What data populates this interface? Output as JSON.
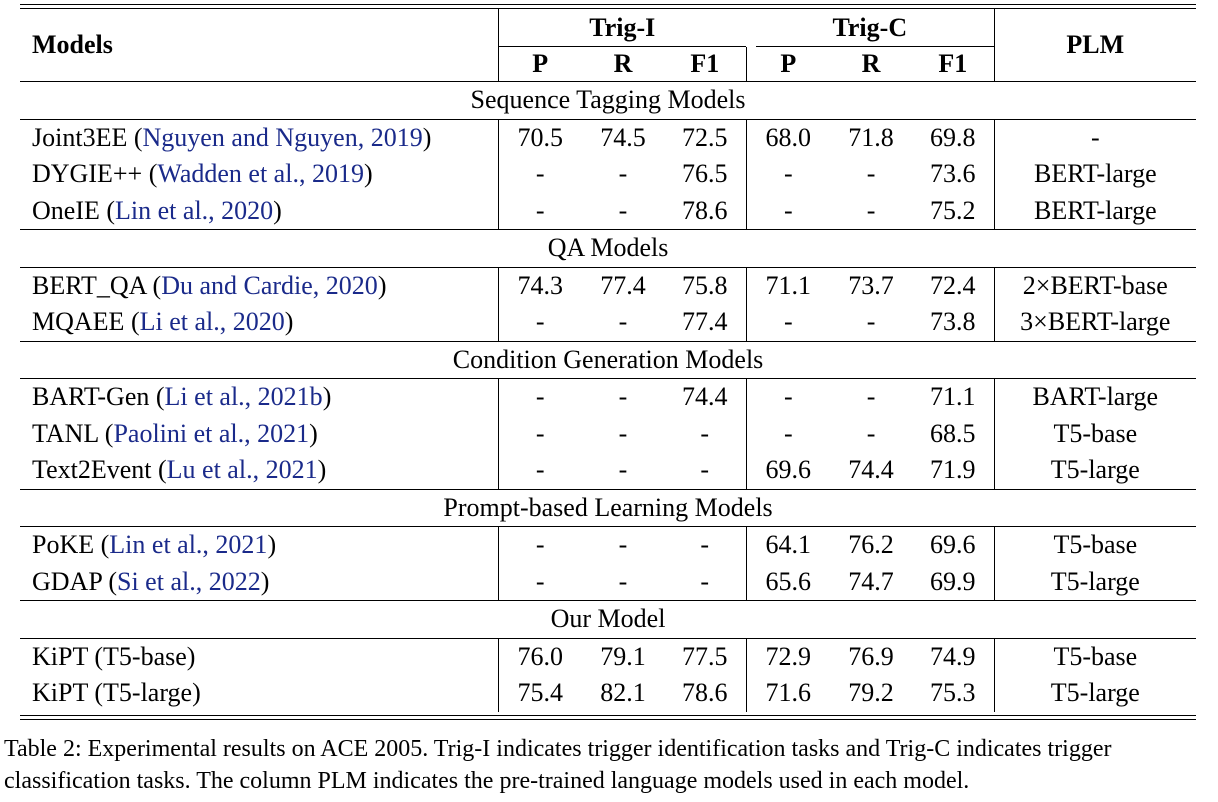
{
  "table": {
    "headers": {
      "models": "Models",
      "trig_i": "Trig-I",
      "trig_c": "Trig-C",
      "plm": "PLM",
      "sub": [
        "P",
        "R",
        "F1",
        "P",
        "R",
        "F1"
      ]
    },
    "sections": [
      {
        "title": "Sequence Tagging Models",
        "rows": [
          {
            "name": "Joint3EE",
            "cite": "Nguyen and Nguyen, 2019",
            "values": [
              "70.5",
              "74.5",
              "72.5",
              "68.0",
              "71.8",
              "69.8"
            ],
            "plm": "-",
            "bold": []
          },
          {
            "name": "DYGIE++",
            "cite": "Wadden et al., 2019",
            "values": [
              "-",
              "-",
              "76.5",
              "-",
              "-",
              "73.6"
            ],
            "plm": "BERT-large",
            "bold": []
          },
          {
            "name": "OneIE",
            "cite": "Lin et al., 2020",
            "values": [
              "-",
              "-",
              "78.6",
              "-",
              "-",
              "75.2"
            ],
            "plm": "BERT-large",
            "bold": [
              2
            ]
          }
        ]
      },
      {
        "title": "QA Models",
        "rows": [
          {
            "name": "BERT_QA",
            "cite": "Du and Cardie, 2020",
            "values": [
              "74.3",
              "77.4",
              "75.8",
              "71.1",
              "73.7",
              "72.4"
            ],
            "plm": "2×BERT-base",
            "bold": []
          },
          {
            "name": "MQAEE",
            "cite": "Li et al., 2020",
            "values": [
              "-",
              "-",
              "77.4",
              "-",
              "-",
              "73.8"
            ],
            "plm": "3×BERT-large",
            "bold": []
          }
        ]
      },
      {
        "title": "Condition Generation Models",
        "rows": [
          {
            "name": "BART-Gen",
            "cite": "Li et al., 2021b",
            "values": [
              "-",
              "-",
              "74.4",
              "-",
              "-",
              "71.1"
            ],
            "plm": "BART-large",
            "bold": []
          },
          {
            "name": "TANL",
            "cite": "Paolini et al., 2021",
            "values": [
              "-",
              "-",
              "-",
              "-",
              "-",
              "68.5"
            ],
            "plm": "T5-base",
            "bold": []
          },
          {
            "name": "Text2Event",
            "cite": "Lu et al., 2021",
            "values": [
              "-",
              "-",
              "-",
              "69.6",
              "74.4",
              "71.9"
            ],
            "plm": "T5-large",
            "bold": []
          }
        ]
      },
      {
        "title": "Prompt-based Learning Models",
        "rows": [
          {
            "name": "PoKE",
            "cite": "Lin et al., 2021",
            "values": [
              "-",
              "-",
              "-",
              "64.1",
              "76.2",
              "69.6"
            ],
            "plm": "T5-base",
            "bold": []
          },
          {
            "name": "GDAP",
            "cite": "Si et al., 2022",
            "values": [
              "-",
              "-",
              "-",
              "65.6",
              "74.7",
              "69.9"
            ],
            "plm": "T5-large",
            "bold": []
          }
        ]
      },
      {
        "title": "Our Model",
        "rows": [
          {
            "name": "KiPT (T5-base)",
            "cite": "",
            "values": [
              "76.0",
              "79.1",
              "77.5",
              "72.9",
              "76.9",
              "74.9"
            ],
            "plm": "T5-base",
            "bold": [
              0,
              3
            ]
          },
          {
            "name": "KiPT (T5-large)",
            "cite": "",
            "values": [
              "75.4",
              "82.1",
              "78.6",
              "71.6",
              "79.2",
              "75.3"
            ],
            "plm": "T5-large",
            "bold": [
              1,
              2,
              4,
              5
            ]
          }
        ]
      }
    ]
  },
  "caption": "Table 2: Experimental results on ACE 2005. Trig-I indicates trigger identification tasks and Trig-C indicates trigger classification tasks. The column PLM indicates the pre-trained language models used in each model."
}
